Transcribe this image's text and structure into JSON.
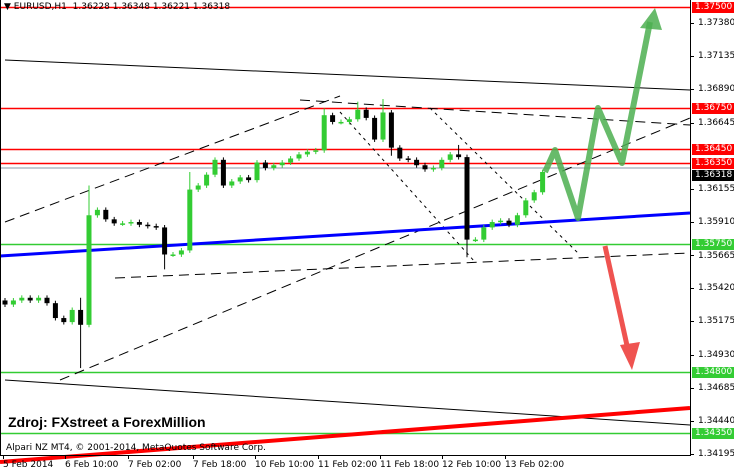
{
  "header": {
    "symbol": "EURUSD,H1",
    "ohlc": "1.36228 1.36348 1.36221 1.36318"
  },
  "source_note": "Zdroj: FXstreet a ForexMillion",
  "copyright": "Alpari NZ MT4, © 2001-2014, MetaQuotes Software Corp.",
  "price_axis": {
    "top_price": 1.375,
    "bottom_price": 1.3435,
    "ticks": [
      "1.37380",
      "1.37135",
      "1.36890",
      "1.36645",
      "1.36155",
      "1.35910",
      "1.35665",
      "1.35420",
      "1.35175",
      "1.34930",
      "1.34685",
      "1.34440",
      "1.34195"
    ]
  },
  "time_axis": {
    "labels": [
      "5 Feb 2014",
      "6 Feb 10:00",
      "7 Feb 02:00",
      "7 Feb 18:00",
      "10 Feb 10:00",
      "11 Feb 02:00",
      "11 Feb 18:00",
      "12 Feb 10:00",
      "13 Feb 02:00"
    ]
  },
  "levels": [
    {
      "price": "1.37500",
      "color": "#ff0000"
    },
    {
      "price": "1.36750",
      "color": "#ff0000"
    },
    {
      "price": "1.36450",
      "color": "#ff0000"
    },
    {
      "price": "1.36350",
      "color": "#ff0000"
    },
    {
      "price": "1.35750",
      "color": "#33cc33"
    },
    {
      "price": "1.34800",
      "color": "#33cc33"
    },
    {
      "price": "1.34350",
      "color": "#33cc33"
    }
  ],
  "bid": {
    "price": "1.36318"
  },
  "colors": {
    "bull": "#33cc33",
    "bear": "#000000",
    "support": "#33cc33",
    "resistance": "#ff0000",
    "trend_blue": "#0000ff",
    "arrow_up": "#4caf50",
    "arrow_down": "#ef5350"
  },
  "closes": [
    1.353,
    1.3533,
    1.3535,
    1.3533,
    1.3535,
    1.3531,
    1.352,
    1.3517,
    1.3526,
    1.3515,
    1.3596,
    1.36,
    1.3593,
    1.359,
    1.359,
    1.3591,
    1.3589,
    1.3588,
    1.3587,
    1.3567,
    1.3567,
    1.357,
    1.3615,
    1.3618,
    1.3626,
    1.3637,
    1.3618,
    1.3621,
    1.3624,
    1.3622,
    1.3635,
    1.3631,
    1.3633,
    1.3635,
    1.3638,
    1.3641,
    1.3643,
    1.3644,
    1.367,
    1.3665,
    1.3665,
    1.3667,
    1.3674,
    1.3668,
    1.3652,
    1.3672,
    1.3646,
    1.3638,
    1.3637,
    1.3633,
    1.363,
    1.3631,
    1.3637,
    1.3641,
    1.3639,
    1.3578,
    1.3578,
    1.3587,
    1.3591,
    1.3592,
    1.3589,
    1.3596,
    1.3607,
    1.3613,
    1.3628
  ]
}
